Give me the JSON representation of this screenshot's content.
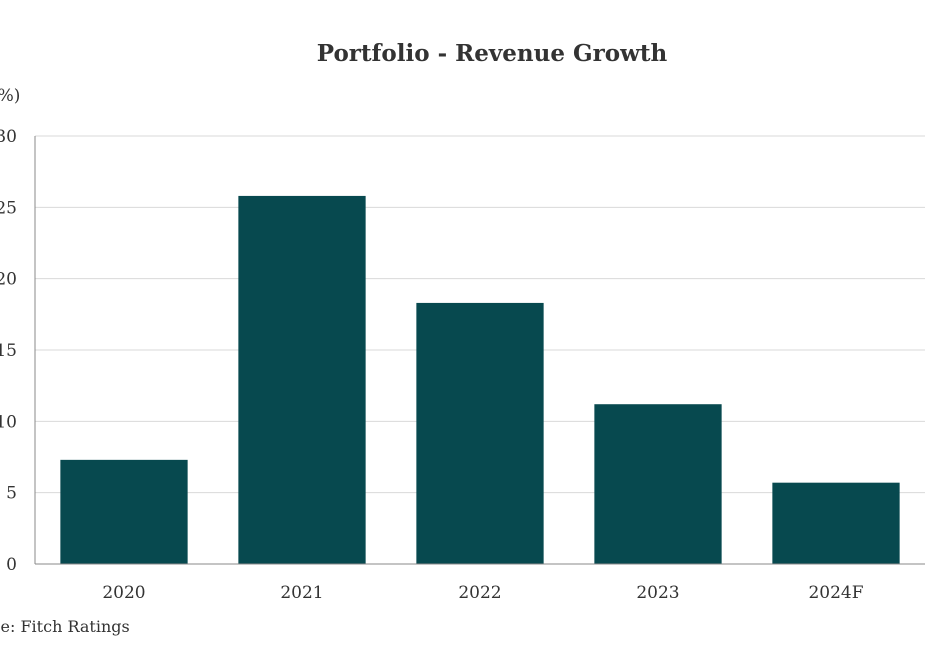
{
  "chart_data": {
    "type": "bar",
    "title": "Portfolio - Revenue Growth",
    "ylabel": "(%)",
    "xlabel": "",
    "categories": [
      "2020",
      "2021",
      "2022",
      "2023",
      "2024F"
    ],
    "values": [
      7.3,
      25.8,
      18.3,
      11.2,
      5.7
    ],
    "ylim": [
      0,
      30
    ],
    "yticks": [
      "0",
      "5",
      "10",
      "15",
      "20",
      "25",
      "30"
    ],
    "grid": true,
    "bar_color": "#07494f",
    "grid_color": "#d9d9d9",
    "axis_color": "#888888",
    "source": "Source: Fitch Ratings"
  }
}
